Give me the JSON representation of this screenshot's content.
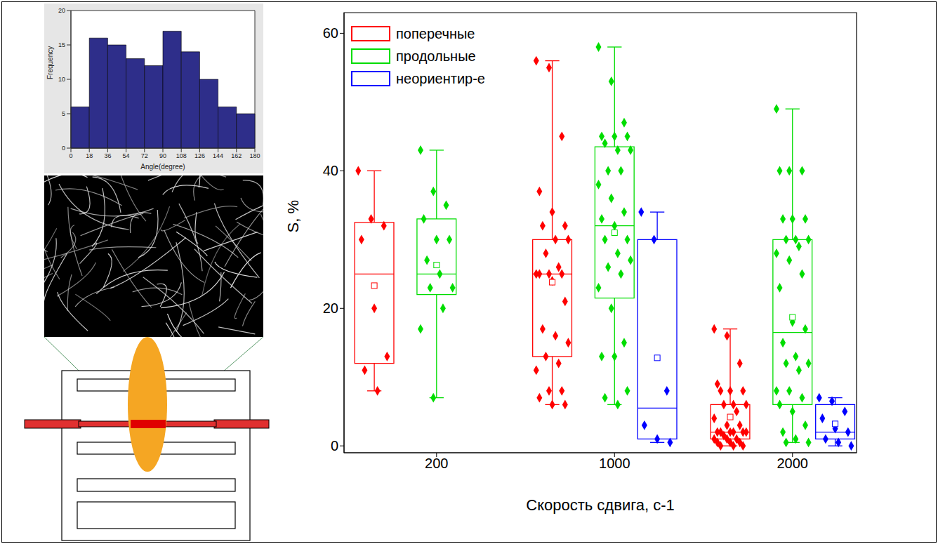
{
  "chart_data": [
    {
      "type": "histogram",
      "xlabel": "Angle(degree)",
      "ylabel": "Frequency",
      "bins": [
        0,
        18,
        36,
        54,
        72,
        90,
        108,
        126,
        144,
        162,
        180
      ],
      "values": [
        6,
        16,
        15,
        13,
        12,
        17,
        14,
        10,
        6,
        5
      ],
      "color": "#2e2e8a",
      "xlim": [
        0,
        180
      ],
      "xticks": [
        0,
        18,
        36,
        54,
        72,
        90,
        108,
        126,
        144,
        162,
        180
      ],
      "ylim": [
        0,
        20
      ],
      "yticks": [
        0,
        5,
        10,
        15,
        20
      ]
    },
    {
      "type": "box",
      "xlabel": "Скорость сдвига, с-1",
      "ylabel": "S, %",
      "categories": [
        "200",
        "1000",
        "2000"
      ],
      "ylim": [
        -1,
        63
      ],
      "yticks": [
        0,
        20,
        40,
        60
      ],
      "legend": "upper left",
      "marker": "diamond",
      "series": [
        {
          "name": "поперечные",
          "color": "#ff0000",
          "values": [
            {
              "min": 8,
              "q1": 12,
              "median": 25,
              "q3": 32.5,
              "max": 40,
              "mean": 23.3,
              "points": [
                40,
                33,
                32,
                30,
                20,
                13,
                11,
                8
              ]
            },
            {
              "min": 6,
              "q1": 13,
              "median": 25,
              "q3": 30,
              "max": 56,
              "mean": 23.8,
              "points": [
                56,
                55,
                45,
                37,
                34,
                32,
                32,
                30,
                30,
                28,
                26,
                25,
                25,
                25,
                25,
                24,
                21,
                17,
                16,
                15,
                13,
                12,
                11,
                8,
                8,
                7,
                6,
                6
              ]
            },
            {
              "min": 0,
              "q1": 1,
              "median": 2,
              "q3": 6,
              "max": 17,
              "mean": 4.2,
              "points": [
                17,
                16,
                12,
                9,
                8,
                8,
                8,
                6,
                6,
                6,
                5,
                4,
                3,
                3,
                2,
                2,
                2,
                2,
                2,
                2,
                1.5,
                1,
                1,
                1,
                0.5,
                0.5,
                0.5,
                0,
                0,
                0
              ]
            }
          ]
        },
        {
          "name": "продольные",
          "color": "#00dd00",
          "values": [
            {
              "min": 7,
              "q1": 22,
              "median": 25,
              "q3": 33,
              "max": 43,
              "mean": 26.3,
              "points": [
                43,
                37,
                35,
                33,
                30,
                30,
                27,
                25,
                23,
                23,
                20,
                17,
                7
              ]
            },
            {
              "min": 6,
              "q1": 21.5,
              "median": 32,
              "q3": 43.5,
              "max": 58,
              "mean": 31,
              "points": [
                58,
                53,
                47,
                45,
                45,
                45,
                44,
                43,
                43,
                40,
                40,
                38,
                36,
                34,
                33,
                32,
                30,
                30,
                28,
                27,
                26,
                25,
                23,
                20,
                15,
                13,
                13,
                8,
                7,
                6
              ]
            },
            {
              "min": 0.5,
              "q1": 6,
              "median": 16.5,
              "q3": 30,
              "max": 49,
              "mean": 18.7,
              "points": [
                49,
                40,
                40,
                40,
                33,
                33,
                33,
                30,
                30,
                30,
                29,
                28,
                27,
                25,
                23,
                18,
                17,
                15,
                13,
                12,
                12,
                11,
                8,
                8,
                7,
                6,
                5,
                3,
                2,
                1,
                0.5,
                0.5
              ]
            }
          ]
        },
        {
          "name": "неориентир-е",
          "color": "#0000ff",
          "values": [
            null,
            {
              "min": 0.5,
              "q1": 1,
              "median": 5.5,
              "q3": 30,
              "max": 34,
              "mean": 12.8,
              "points": [
                34,
                30,
                8,
                3,
                1,
                0.5
              ]
            },
            {
              "min": 0,
              "q1": 1,
              "median": 2,
              "q3": 6,
              "max": 7,
              "mean": 3.2,
              "points": [
                7,
                6.5,
                5,
                4,
                2.5,
                2,
                1,
                0.5,
                0
              ]
            }
          ]
        }
      ]
    }
  ]
}
